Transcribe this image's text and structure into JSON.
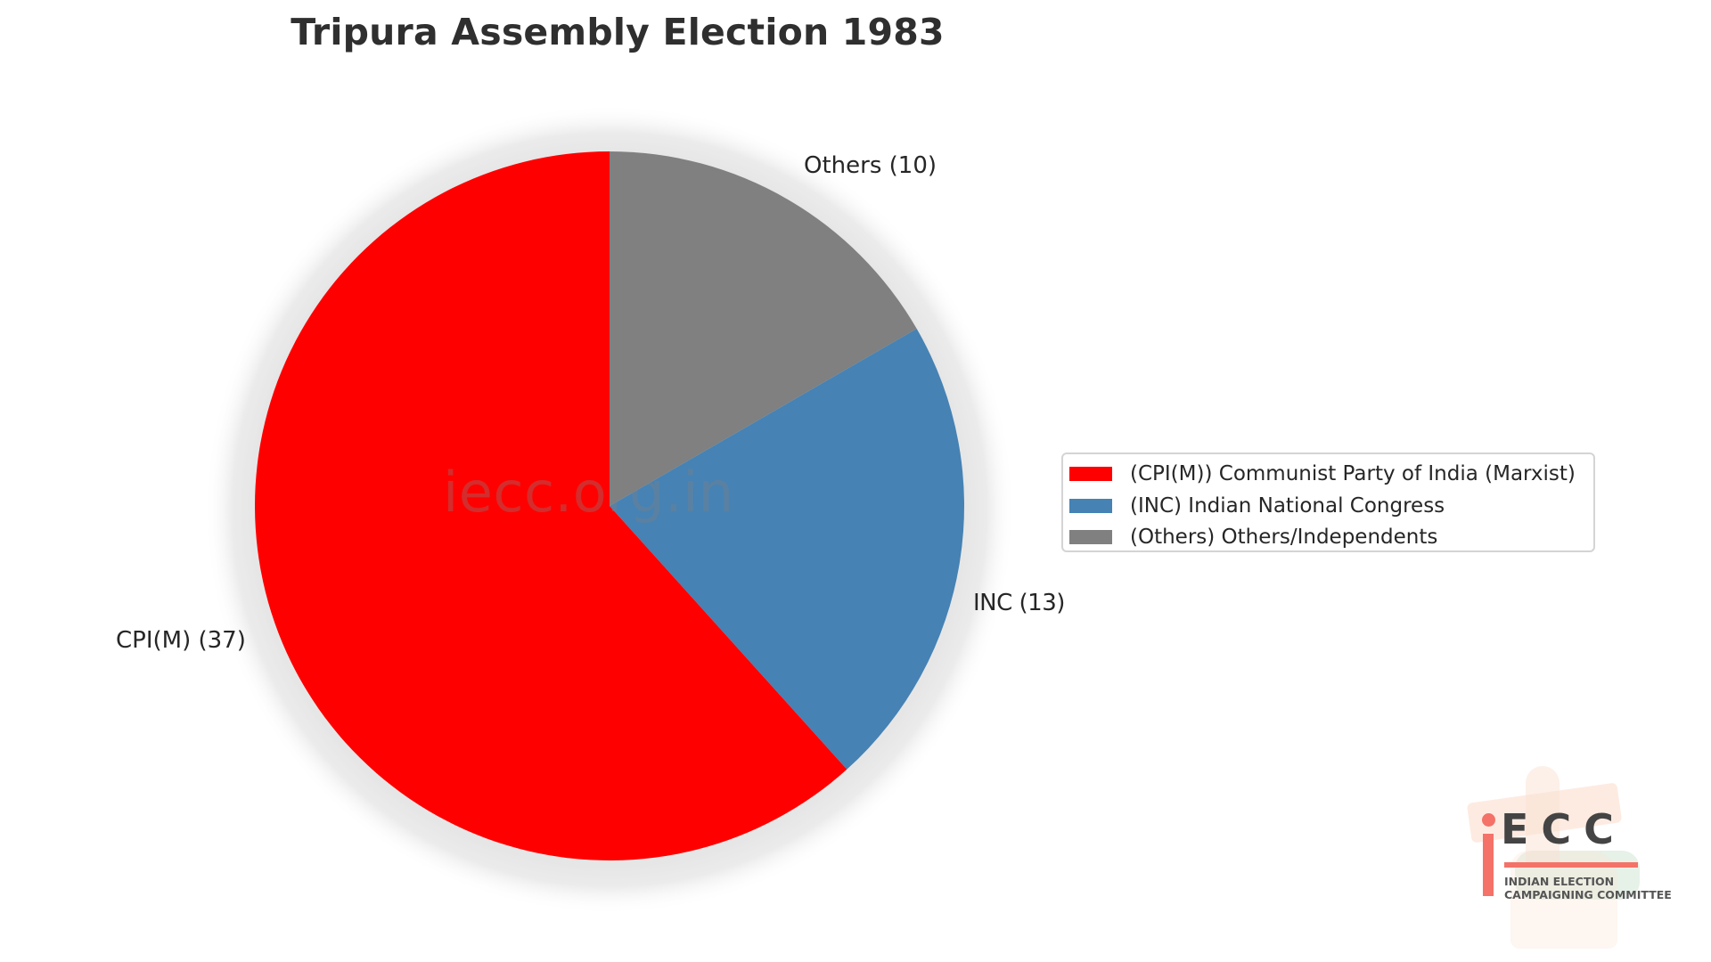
{
  "chart_data": {
    "type": "pie",
    "title": "Tripura Assembly Election 1983",
    "categories": [
      "CPI(M)",
      "INC",
      "Others"
    ],
    "values": [
      37,
      13,
      10
    ],
    "colors": [
      "#ff0000",
      "#4682b4",
      "#808080"
    ],
    "slice_labels": [
      "CPI(M) (37)",
      "INC (13)",
      "Others (10)"
    ],
    "legend": [
      "(CPI(M)) Communist Party of India (Marxist)",
      "(INC) Indian National Congress",
      "(Others) Others/Independents"
    ],
    "legend_position": "right",
    "start_angle": "top, clockwise (Others first)",
    "total": 60
  },
  "title": "Tripura Assembly Election 1983",
  "watermark": "iecc.org.in",
  "labels": {
    "cpim": "CPI(M) (37)",
    "inc": "INC (13)",
    "others": "Others (10)"
  },
  "legend": {
    "items": [
      {
        "label": "(CPI(M)) Communist Party of India (Marxist)",
        "color": "#ff0000"
      },
      {
        "label": "(INC) Indian National Congress",
        "color": "#4682b4"
      },
      {
        "label": "(Others) Others/Independents",
        "color": "#808080"
      }
    ]
  },
  "logo": {
    "letters": "ECC",
    "line1": "INDIAN ELECTION",
    "line2": "CAMPAIGNING COMMITTEE"
  }
}
